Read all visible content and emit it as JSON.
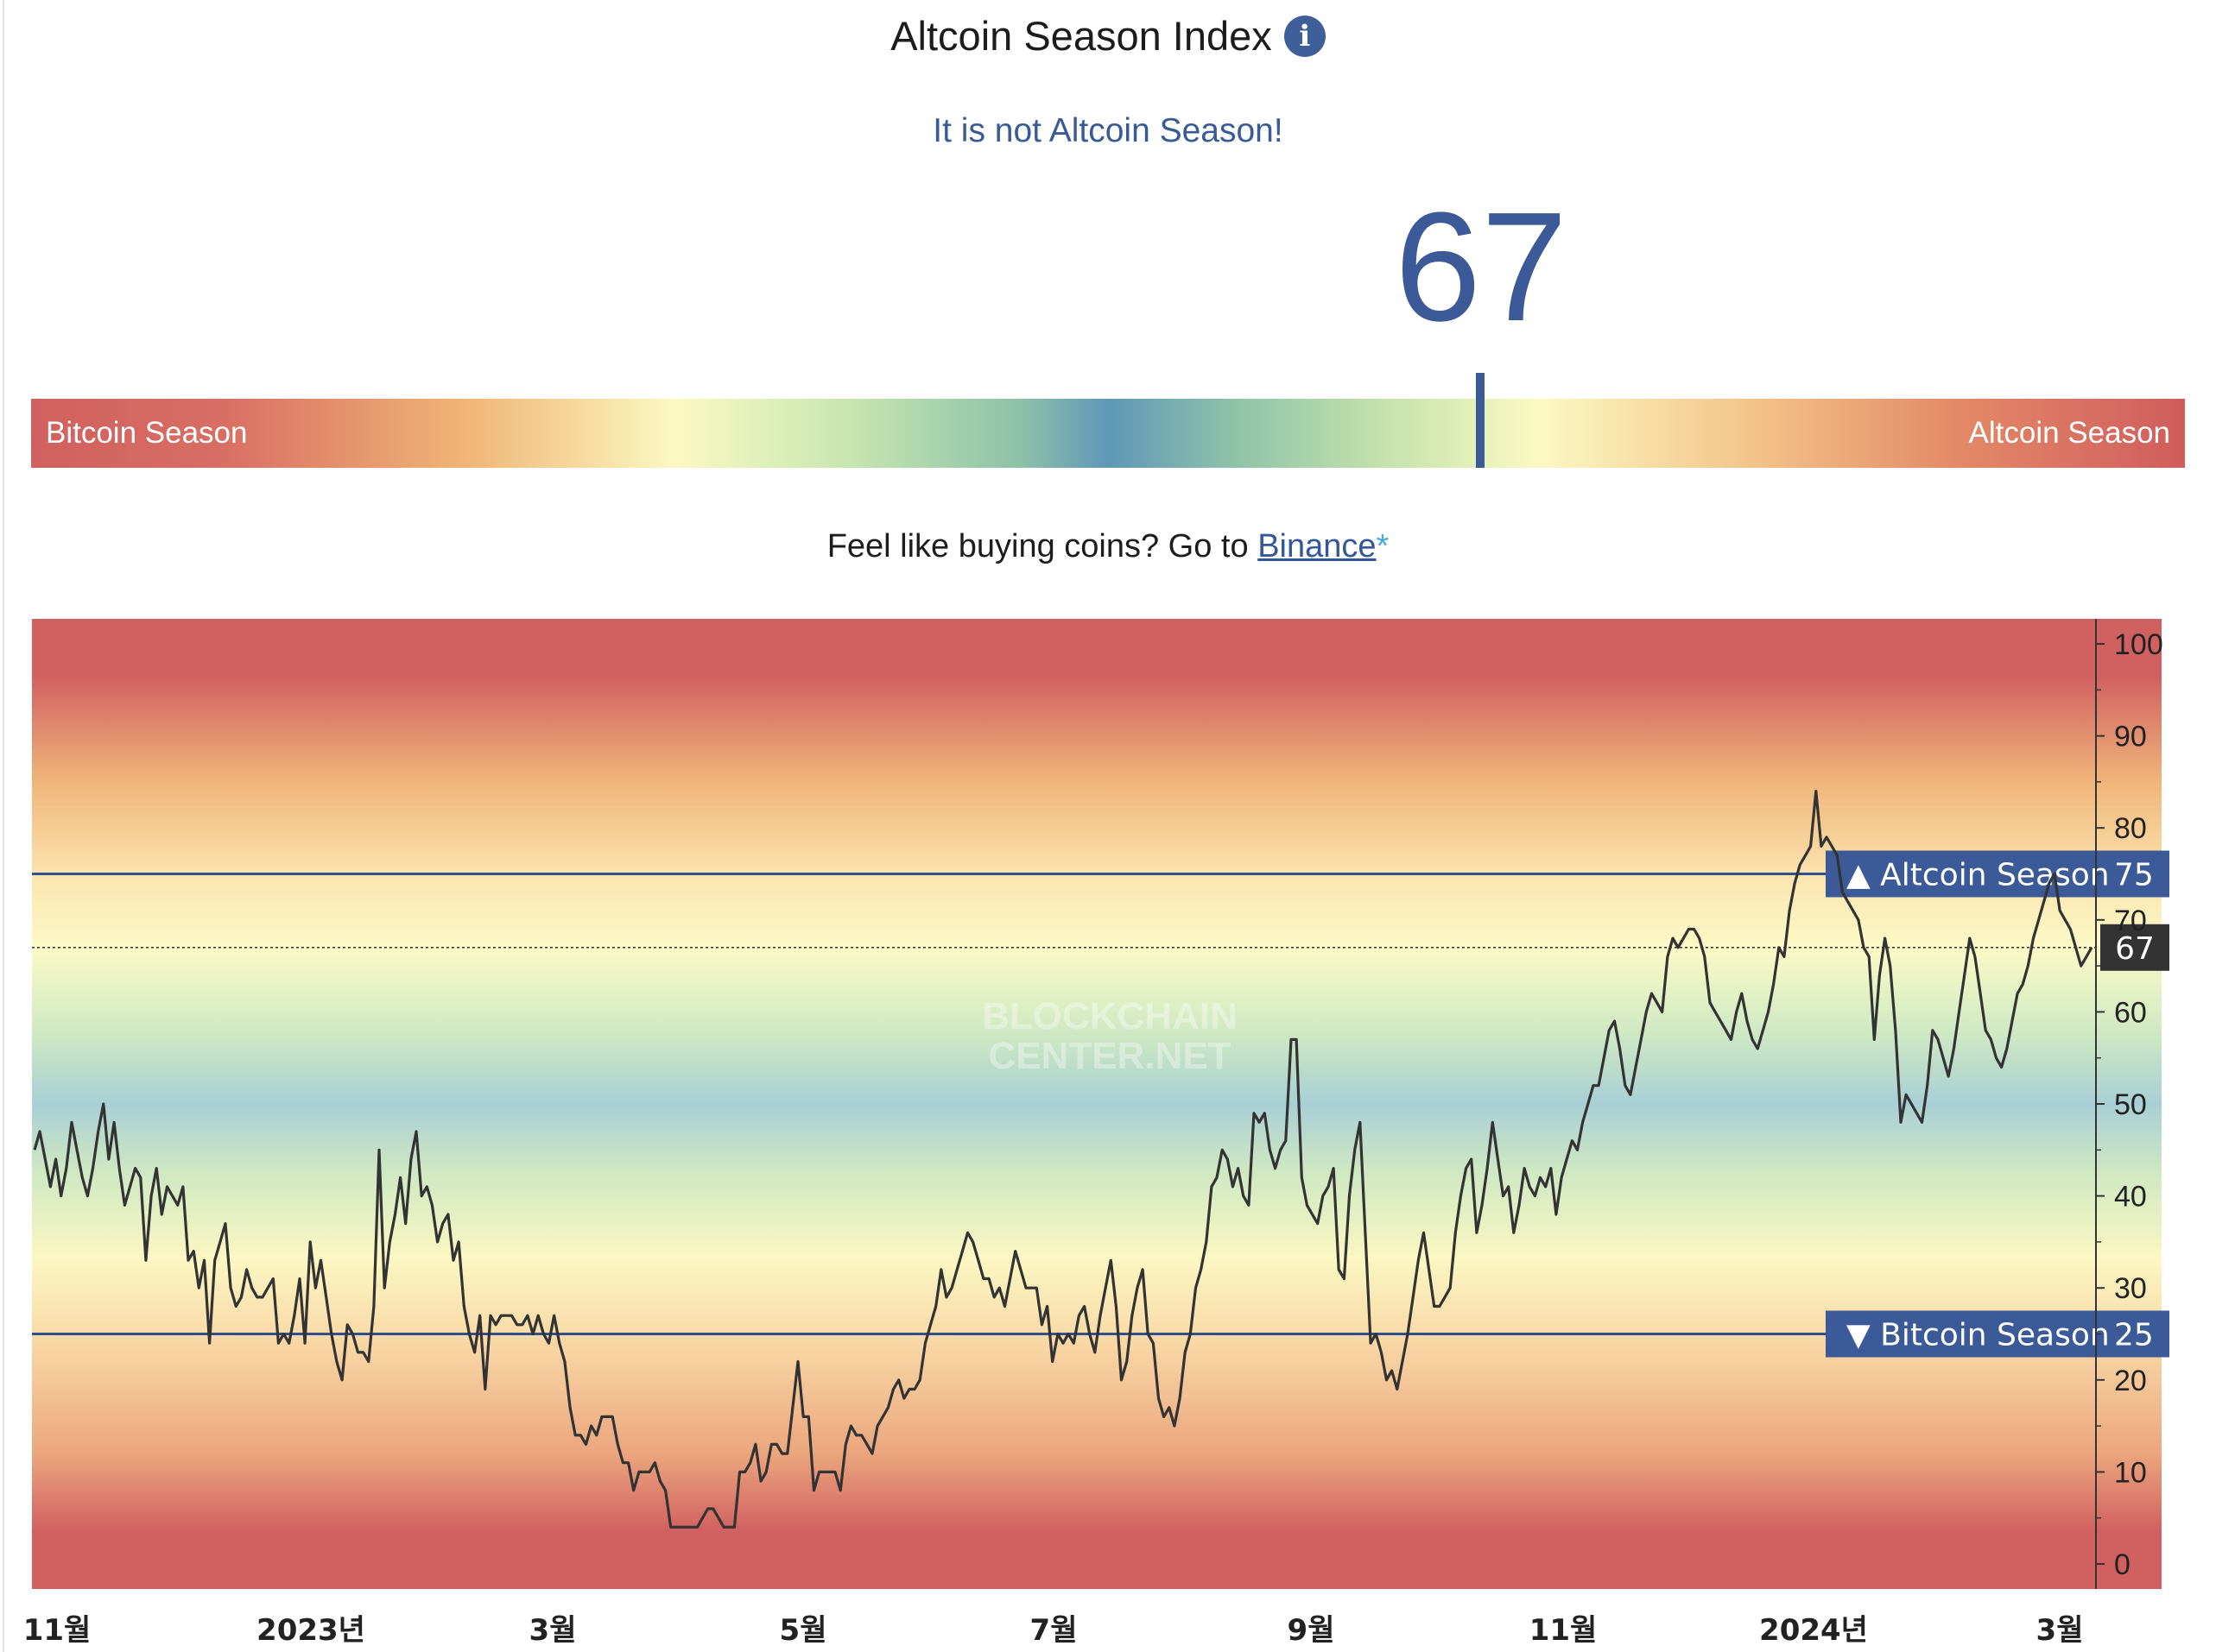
{
  "header": {
    "title": "Altcoin Season Index",
    "info_icon": "info-icon",
    "status": "It is not Altcoin Season!",
    "value": "67"
  },
  "gauge": {
    "left_label": "Bitcoin Season",
    "right_label": "Altcoin Season",
    "value": 67
  },
  "promo": {
    "text": "Feel like buying coins? Go to ",
    "link_text": "Binance",
    "suffix": "*"
  },
  "chart_data": {
    "type": "line",
    "watermark": [
      "BLOCKCHAIN",
      "CENTER.NET"
    ],
    "ylim": [
      0,
      100
    ],
    "yticks": [
      0,
      10,
      20,
      30,
      40,
      50,
      60,
      70,
      80,
      90,
      100
    ],
    "xticks": [
      "11월",
      "2023년",
      "3월",
      "5월",
      "7월",
      "9월",
      "11월",
      "2024년",
      "3월"
    ],
    "thresholds": [
      {
        "label": "▲ Altcoin Season",
        "value": 75
      },
      {
        "label": "▼ Bitcoin Season",
        "value": 25
      }
    ],
    "current": {
      "value": 67,
      "label": "67"
    },
    "series": [
      {
        "values": [
          45,
          47,
          44,
          41,
          44,
          40,
          43,
          48,
          45,
          42,
          40,
          43,
          47,
          50,
          44,
          48,
          43,
          39,
          41,
          43,
          42,
          33,
          40,
          43,
          38,
          41,
          40,
          39,
          41,
          33,
          34,
          30,
          33,
          24,
          33,
          35,
          37,
          30,
          28,
          29,
          32,
          30,
          29,
          29,
          30,
          31,
          24,
          25,
          24,
          27,
          31,
          24,
          35,
          30,
          33,
          29,
          25,
          22,
          20,
          26,
          25,
          23,
          23,
          22,
          28,
          45,
          30,
          35,
          38,
          42,
          37,
          44,
          47,
          40,
          41,
          39,
          35,
          37,
          38,
          33,
          35,
          28,
          25,
          23,
          27,
          19,
          27,
          26,
          27,
          27,
          27,
          26,
          26,
          27,
          25,
          27,
          25,
          24,
          27,
          24,
          22,
          17,
          14,
          14,
          13,
          15,
          14,
          16,
          16,
          16,
          13,
          11,
          11,
          8,
          10,
          10,
          10,
          11,
          9,
          8,
          4,
          4,
          4,
          4,
          4,
          4,
          5,
          6,
          6,
          5,
          4,
          4,
          4,
          10,
          10,
          11,
          13,
          9,
          10,
          13,
          13,
          12,
          12,
          17,
          22,
          16,
          16,
          8,
          10,
          10,
          10,
          10,
          8,
          13,
          15,
          14,
          14,
          13,
          12,
          15,
          16,
          17,
          19,
          20,
          18,
          19,
          19,
          20,
          24,
          26,
          28,
          32,
          29,
          30,
          32,
          34,
          36,
          35,
          33,
          31,
          31,
          29,
          30,
          28,
          31,
          34,
          32,
          30,
          30,
          30,
          26,
          28,
          22,
          25,
          24,
          25,
          24,
          27,
          28,
          25,
          23,
          27,
          30,
          33,
          28,
          20,
          22,
          27,
          30,
          32,
          25,
          24,
          18,
          16,
          17,
          15,
          18,
          23,
          25,
          30,
          32,
          35,
          41,
          42,
          45,
          44,
          41,
          43,
          40,
          39,
          49,
          48,
          49,
          45,
          43,
          45,
          46,
          57,
          57,
          42,
          39,
          38,
          37,
          40,
          41,
          43,
          32,
          31,
          40,
          45,
          48,
          36,
          24,
          25,
          23,
          20,
          21,
          19,
          22,
          25,
          29,
          33,
          36,
          32,
          28,
          28,
          29,
          30,
          36,
          40,
          43,
          44,
          36,
          39,
          43,
          48,
          44,
          40,
          41,
          36,
          39,
          43,
          41,
          40,
          42,
          41,
          43,
          38,
          42,
          44,
          46,
          45,
          48,
          50,
          52,
          52,
          55,
          58,
          59,
          56,
          52,
          51,
          54,
          57,
          60,
          62,
          61,
          60,
          66,
          68,
          67,
          68,
          69,
          69,
          68,
          66,
          61,
          60,
          59,
          58,
          57,
          60,
          62,
          59,
          57,
          56,
          58,
          60,
          63,
          67,
          66,
          71,
          74,
          76,
          77,
          78,
          84,
          78,
          79,
          78,
          77,
          73,
          72,
          71,
          70,
          67,
          66,
          57,
          64,
          68,
          65,
          58,
          48,
          51,
          50,
          49,
          48,
          52,
          58,
          57,
          55,
          53,
          56,
          60,
          64,
          68,
          66,
          62,
          58,
          57,
          55,
          54,
          56,
          59,
          62,
          63,
          65,
          68,
          70,
          72,
          74,
          75,
          71,
          70,
          69,
          67,
          65,
          66,
          67
        ]
      }
    ]
  },
  "colors": {
    "accent": "#3b5a97",
    "line": "#333333",
    "current_label_bg": "#333333"
  }
}
